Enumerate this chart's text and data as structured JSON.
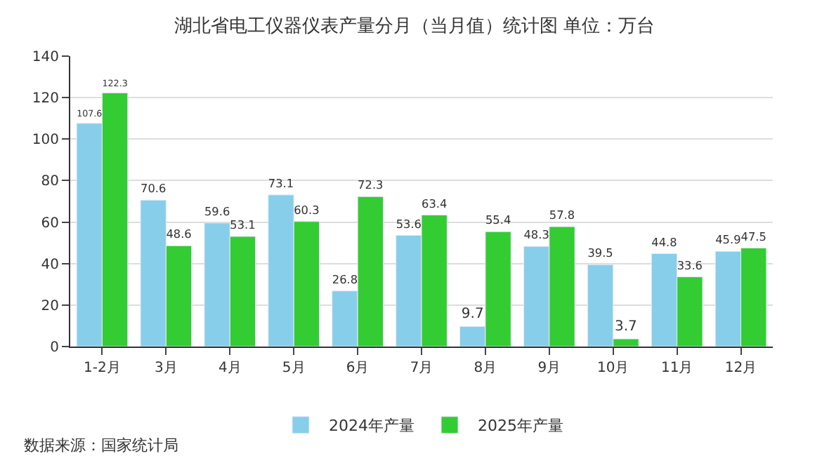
{
  "chart_data": {
    "type": "bar",
    "title": "湖北省电工仪器仪表产量分月（当月值）统计图 单位：万台",
    "categories": [
      "1-2月",
      "3月",
      "4月",
      "5月",
      "6月",
      "7月",
      "8月",
      "9月",
      "10月",
      "11月",
      "12月"
    ],
    "series": [
      {
        "name": "2024年产量",
        "color": "#87ceeb",
        "values": [
          107.6,
          70.6,
          59.6,
          73.1,
          26.8,
          53.6,
          9.7,
          48.3,
          39.5,
          44.8,
          45.9
        ]
      },
      {
        "name": "2025年产量",
        "color": "#33cc33",
        "values": [
          122.3,
          48.6,
          53.1,
          60.3,
          72.3,
          63.4,
          55.4,
          57.8,
          3.7,
          33.6,
          47.5
        ]
      }
    ],
    "ylim": [
      0,
      140
    ],
    "yticks": [
      0,
      20,
      40,
      60,
      80,
      100,
      120,
      140
    ],
    "grid": "y",
    "legend": "bottom",
    "data_labels": true,
    "annotations": [
      "数据来源：国家统计局"
    ]
  }
}
